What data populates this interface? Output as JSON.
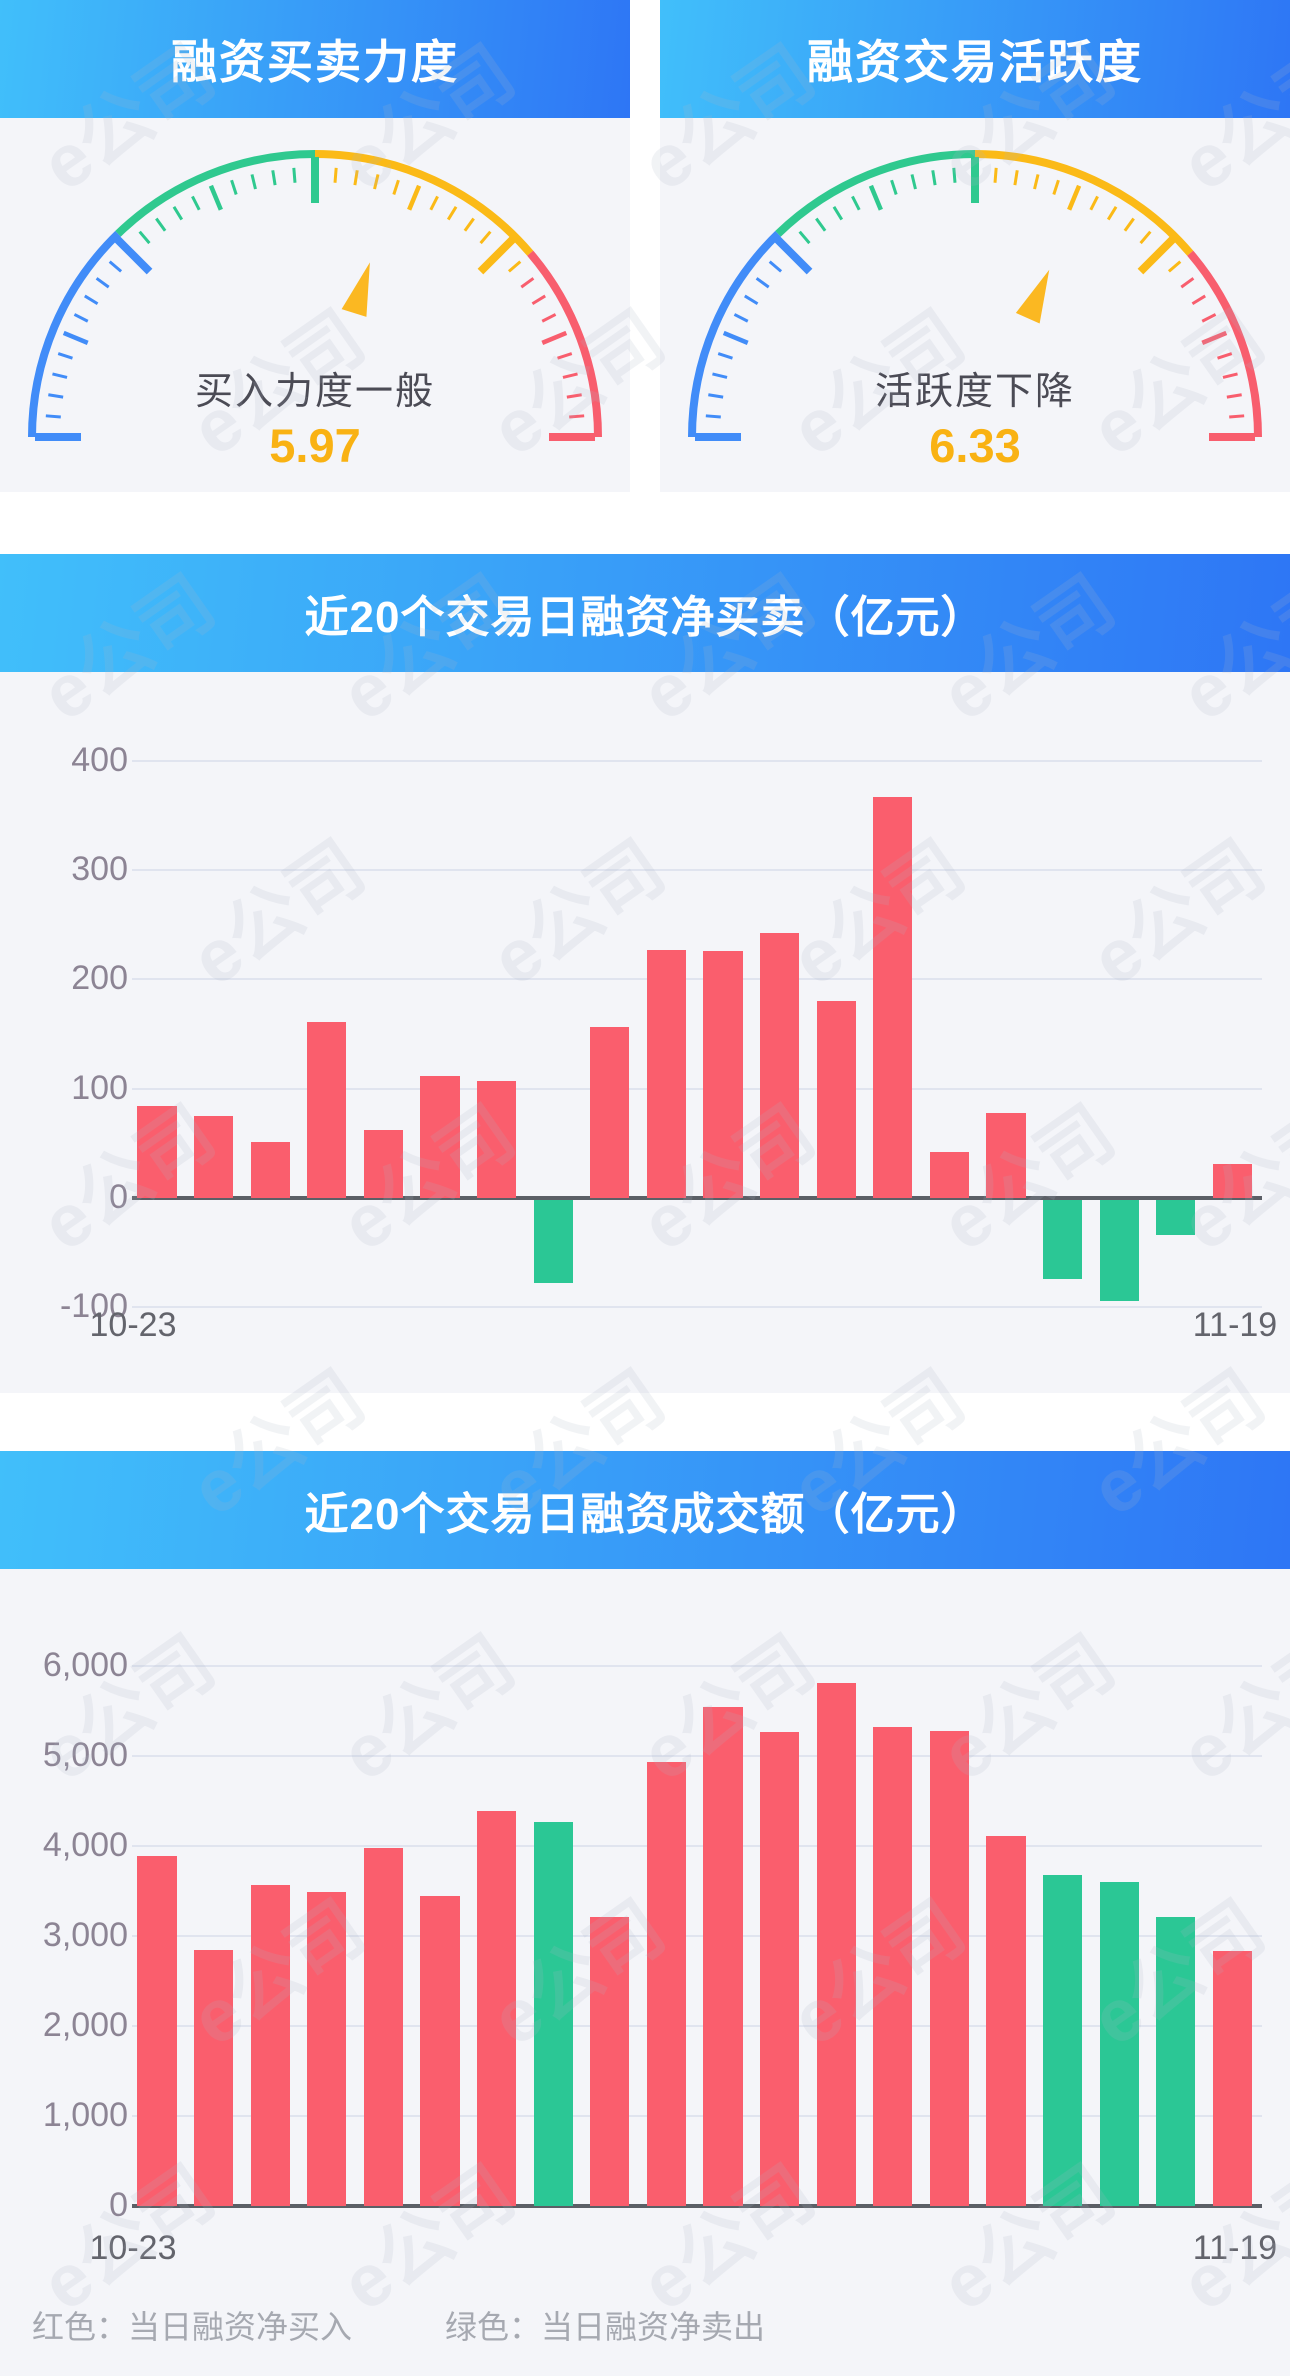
{
  "watermark": {
    "text": "e公司"
  },
  "colors": {
    "red": "#FA5E6D",
    "green": "#2BC795",
    "yellow": "#FBB822",
    "blue": "#418CF8",
    "header_gradient_from": "#41BFFA",
    "header_gradient_to": "#2E76F5",
    "value_yellow": "#F9B213",
    "gridline": "#E0E4EF",
    "axis_dark": "#5B5F66",
    "tick_label_gray": "#8C8494"
  },
  "legend": {
    "red_label": "红色：当日融资净买入",
    "green_label": "绿色：当日融资净卖出"
  },
  "chart_data": [
    {
      "type": "gauge",
      "title": "融资买卖力度",
      "label": "买入力度一般",
      "value": 5.97,
      "value_text": "5.97",
      "min": 0,
      "max": 10,
      "segments": [
        {
          "color": "#418CF8",
          "to": 2.55
        },
        {
          "color": "#2FC98F",
          "to": 5.0
        },
        {
          "color": "#FBBA17",
          "to": 7.75
        },
        {
          "color": "#F85E6E",
          "to": 10
        }
      ]
    },
    {
      "type": "gauge",
      "title": "融资交易活跃度",
      "label": "活跃度下降",
      "value": 6.33,
      "value_text": "6.33",
      "min": 0,
      "max": 10,
      "segments": [
        {
          "color": "#418CF8",
          "to": 2.55
        },
        {
          "color": "#2FC98F",
          "to": 5.0
        },
        {
          "color": "#FBBA17",
          "to": 7.75
        },
        {
          "color": "#F85E6E",
          "to": 10
        }
      ]
    },
    {
      "type": "bar",
      "title": "近20个交易日融资净买卖（亿元）",
      "xlabel": "",
      "ylabel": "亿元",
      "x_first": "10-23",
      "x_last": "11-19",
      "ylim": [
        -100,
        400
      ],
      "y_ticks": [
        400,
        300,
        200,
        100,
        0,
        -100
      ],
      "y_tick_labels": [
        "400",
        "300",
        "200",
        "100",
        "0",
        "-100"
      ],
      "grid": true,
      "values": [
        84,
        75,
        51,
        161,
        62,
        112,
        107,
        -76,
        156,
        227,
        226,
        242,
        180,
        367,
        42,
        78,
        -72,
        -92,
        -32,
        31
      ],
      "positive_color": "#FA5E6D",
      "negative_color": "#2BC795"
    },
    {
      "type": "bar",
      "title": "近20个交易日融资成交额（亿元）",
      "xlabel": "",
      "ylabel": "亿元",
      "x_first": "10-23",
      "x_last": "11-19",
      "ylim": [
        0,
        6000
      ],
      "y_ticks": [
        6000,
        5000,
        4000,
        3000,
        2000,
        1000,
        0
      ],
      "y_tick_labels": [
        "6,000",
        "5,000",
        "4,000",
        "3,000",
        "2,000",
        "1,000",
        "0"
      ],
      "grid": true,
      "values": [
        3890,
        2840,
        3570,
        3490,
        3975,
        3445,
        4390,
        4270,
        3210,
        4930,
        5550,
        5270,
        5810,
        5325,
        5280,
        4110,
        3675,
        3600,
        3210,
        2830
      ],
      "sell_day_indices": [
        7,
        16,
        17,
        18
      ],
      "buy_color": "#FA5E6D",
      "sell_color": "#2BC795"
    }
  ]
}
